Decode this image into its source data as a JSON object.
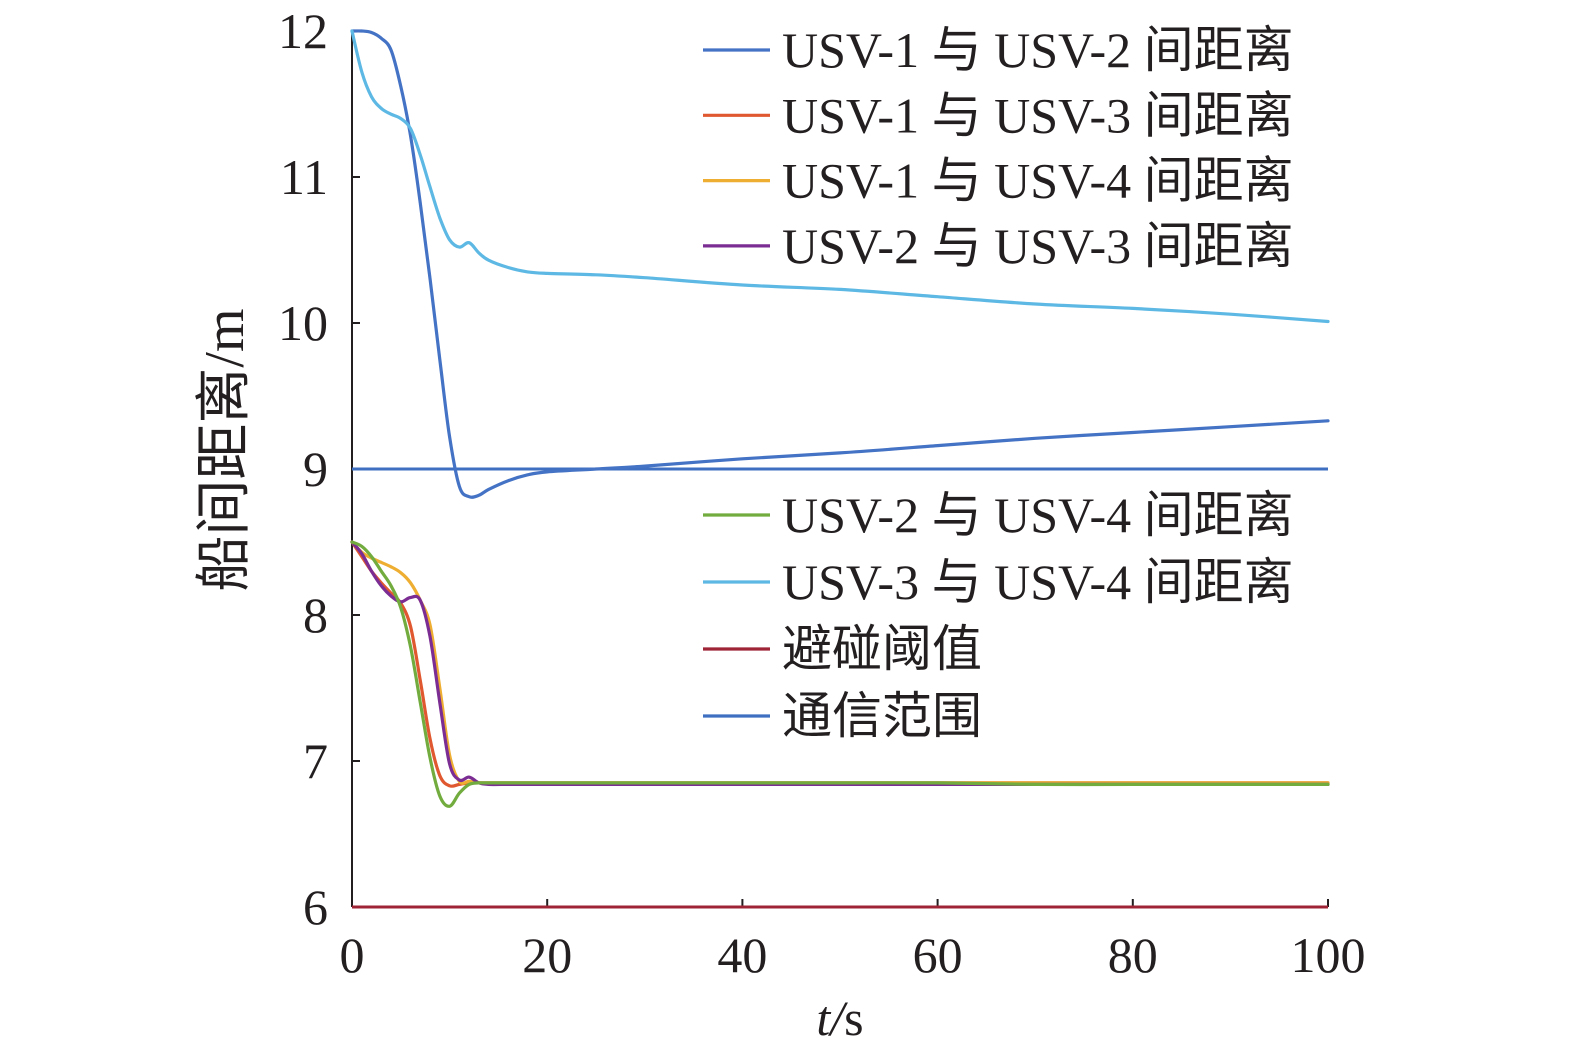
{
  "chart_data": {
    "type": "line",
    "xlabel": "t/s",
    "ylabel": "船间距离/m",
    "xlim": [
      0,
      100
    ],
    "ylim": [
      6,
      12
    ],
    "x_ticks": [
      0,
      20,
      40,
      60,
      80,
      100
    ],
    "y_ticks": [
      6,
      7,
      8,
      9,
      10,
      11,
      12
    ],
    "grid": false,
    "legend_position": "right",
    "x": [
      0,
      1,
      2,
      3,
      4,
      5,
      6,
      7,
      8,
      9,
      10,
      11,
      12,
      13,
      14,
      16,
      18,
      20,
      25,
      30,
      40,
      50,
      60,
      70,
      80,
      90,
      100
    ],
    "series": [
      {
        "name": "USV-1 与 USV-2 间距离",
        "color": "#4472C4",
        "values": [
          12.0,
          12.0,
          11.99,
          11.95,
          11.87,
          11.62,
          11.28,
          10.82,
          10.3,
          9.75,
          9.22,
          8.88,
          8.81,
          8.82,
          8.86,
          8.92,
          8.96,
          8.98,
          9.0,
          9.02,
          9.07,
          9.11,
          9.16,
          9.21,
          9.25,
          9.29,
          9.33
        ]
      },
      {
        "name": "USV-1 与 USV-3 间距离",
        "color": "#E0582F",
        "values": [
          8.5,
          8.4,
          8.3,
          8.22,
          8.15,
          8.08,
          7.92,
          7.55,
          7.15,
          6.9,
          6.83,
          6.84,
          6.85,
          6.85,
          6.85,
          6.85,
          6.85,
          6.85,
          6.85,
          6.85,
          6.85,
          6.85,
          6.85,
          6.85,
          6.85,
          6.85,
          6.85
        ]
      },
      {
        "name": "USV-1 与 USV-4 间距离",
        "color": "#EEAE31",
        "values": [
          8.5,
          8.43,
          8.39,
          8.36,
          8.33,
          8.29,
          8.22,
          8.1,
          7.93,
          7.5,
          7.04,
          6.86,
          6.86,
          6.85,
          6.85,
          6.85,
          6.85,
          6.85,
          6.85,
          6.85,
          6.85,
          6.85,
          6.85,
          6.85,
          6.85,
          6.85,
          6.85
        ]
      },
      {
        "name": "USV-2 与 USV-3 间距离",
        "color": "#7B2D93",
        "values": [
          8.5,
          8.42,
          8.3,
          8.2,
          8.13,
          8.09,
          8.12,
          8.1,
          7.85,
          7.4,
          6.98,
          6.87,
          6.89,
          6.85,
          6.84,
          6.84,
          6.84,
          6.84,
          6.84,
          6.84,
          6.84,
          6.84,
          6.84,
          6.84,
          6.84,
          6.84,
          6.84
        ]
      },
      {
        "name": "USV-2 与 USV-4 间距离",
        "color": "#72AC3F",
        "values": [
          8.5,
          8.47,
          8.4,
          8.3,
          8.2,
          8.05,
          7.78,
          7.4,
          7.02,
          6.76,
          6.69,
          6.78,
          6.84,
          6.85,
          6.85,
          6.85,
          6.85,
          6.85,
          6.85,
          6.85,
          6.85,
          6.85,
          6.85,
          6.84,
          6.84,
          6.84,
          6.84
        ]
      },
      {
        "name": "USV-3 与 USV-4 间距离",
        "color": "#5DB8E4",
        "values": [
          12.0,
          11.72,
          11.55,
          11.47,
          11.43,
          11.4,
          11.33,
          11.15,
          10.93,
          10.72,
          10.57,
          10.52,
          10.55,
          10.48,
          10.43,
          10.38,
          10.35,
          10.34,
          10.33,
          10.31,
          10.26,
          10.23,
          10.18,
          10.13,
          10.1,
          10.06,
          10.01
        ]
      }
    ],
    "reference_lines": [
      {
        "name": "避碰阈值",
        "y": 6,
        "color": "#9E2436"
      },
      {
        "name": "通信范围",
        "y": 9,
        "color": "#3E6FC1"
      }
    ]
  }
}
